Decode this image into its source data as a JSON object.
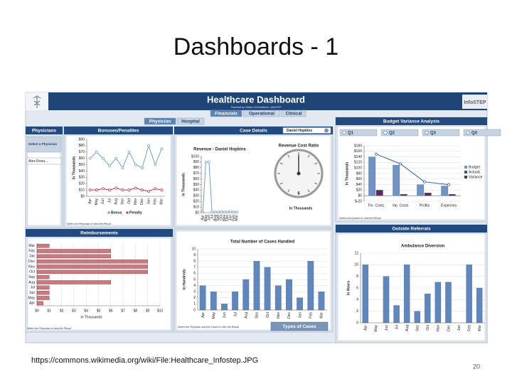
{
  "slide": {
    "title": "Dashboards - 1",
    "source": "https://commons.wikimedia.org/wiki/File:Healthcare_Infostep.JPG",
    "page": "20"
  },
  "dashboard": {
    "title": "Healthcare Dashboard",
    "subtitle": "Powered by Center of Excellence, InfoSTEP",
    "logo": "InfoSTEP",
    "tabs": [
      "Financials",
      "Operational",
      "Clinical"
    ],
    "subtabs": [
      "Physician",
      "Hospital"
    ]
  },
  "panels": {
    "physicians": {
      "header": "Physicians",
      "prompt": "Select a Physician",
      "dropdown": "Alex Rona..."
    },
    "bonuses": {
      "header": "Bonuses/Penalties",
      "footer": "Select the Physician to view the Result",
      "chart": {
        "type": "line",
        "ylabel": "In Thousands",
        "legend": "bottom",
        "grid": false,
        "categories": [
          "Apr",
          "May",
          "Jun",
          "Jul",
          "Aug",
          "Sep",
          "Oct",
          "Nov",
          "Dec",
          "Jan",
          "Feb",
          "Mar"
        ],
        "ylim": [
          0,
          90
        ],
        "yticks": [
          {
            "value": 0,
            "label": "$0"
          },
          {
            "value": 10,
            "label": "$10"
          },
          {
            "value": 20,
            "label": "$20"
          },
          {
            "value": 30,
            "label": "$30"
          },
          {
            "value": 40,
            "label": "$40"
          },
          {
            "value": 50,
            "label": "$50"
          },
          {
            "value": 60,
            "label": "$60"
          },
          {
            "value": 70,
            "label": "$70"
          },
          {
            "value": 80,
            "label": "$80"
          },
          {
            "value": 90,
            "label": "$90"
          }
        ],
        "series": [
          {
            "name": "Bonus",
            "color": "#6d9fd6",
            "values": [
              60,
              70,
              60,
              48,
              60,
              45,
              70,
              50,
              45,
              80,
              50,
              75
            ]
          },
          {
            "name": "Penalty",
            "color": "#c9323a",
            "values": [
              10,
              10,
              12,
              10,
              13,
              10,
              10,
              13,
              10,
              8,
              12,
              10
            ]
          }
        ]
      }
    },
    "case_details": {
      "header": "Case Details",
      "dropdown": "Daniel Hopkins",
      "chart": {
        "type": "line",
        "title": "Revenue - Daniel Hopkins",
        "ylabel": "In Thousands",
        "grid": false,
        "categories": [
          "Apr",
          "May",
          "Jun",
          "Jul",
          "Aug",
          "Sep",
          "Oct",
          "Nov",
          "Dec",
          "Jan",
          "Feb",
          "Mar"
        ],
        "ylim": [
          0,
          100
        ],
        "yticks": [
          {
            "value": 0,
            "label": "$0"
          },
          {
            "value": 10,
            "label": "$10"
          },
          {
            "value": 20,
            "label": "$20"
          },
          {
            "value": 30,
            "label": "$30"
          },
          {
            "value": 40,
            "label": "$40"
          },
          {
            "value": 50,
            "label": "$50"
          },
          {
            "value": 60,
            "label": "$60"
          },
          {
            "value": 70,
            "label": "$70"
          },
          {
            "value": 80,
            "label": "$80"
          },
          {
            "value": 90,
            "label": "$90"
          },
          {
            "value": 100,
            "label": "$100"
          }
        ],
        "series": [
          {
            "color": "#6d9fd6",
            "values": [
              1,
              90,
              90,
              1,
              1,
              1,
              2,
              1,
              1,
              2,
              1,
              1
            ]
          }
        ]
      },
      "gauge": {
        "title": "Revenue Cost Ratio",
        "value": 6,
        "unit": "In Thousands"
      }
    },
    "budget": {
      "header": "Budget Variance Analysis",
      "quarters": [
        "Q1",
        "Q2",
        "Q3",
        "Q4"
      ],
      "footer": "Select the Quarter to view the Result",
      "chart": {
        "type": "bar",
        "ylabel": "In Thousands",
        "legend": "right",
        "grid": true,
        "categories": [
          "Fix. Costs",
          "Var. Costs",
          "Profits",
          "Expenses"
        ],
        "ylim": [
          -20,
          180
        ],
        "yticks": [
          {
            "value": -20,
            "label": "$-20"
          },
          {
            "value": 0,
            "label": "$0"
          },
          {
            "value": 20,
            "label": "$20"
          },
          {
            "value": 40,
            "label": "$40"
          },
          {
            "value": 60,
            "label": "$60"
          },
          {
            "value": 80,
            "label": "$80"
          },
          {
            "value": 100,
            "label": "$100"
          },
          {
            "value": 120,
            "label": "$120"
          },
          {
            "value": 140,
            "label": "$140"
          },
          {
            "value": 160,
            "label": "$160"
          },
          {
            "value": 180,
            "label": "$180"
          }
        ],
        "series": [
          {
            "name": "Budget",
            "color": "#6f93c4",
            "values": [
              140,
              110,
              40,
              35
            ]
          },
          {
            "name": "Actuals",
            "color": "#2f5d9e",
            "style": "line",
            "values": [
              150,
              115,
              50,
              40
            ]
          },
          {
            "name": "Variance",
            "color": "#5b2a5e",
            "values": [
              20,
              5,
              10,
              5
            ]
          }
        ]
      }
    },
    "reimbursements": {
      "header": "Reimbursements",
      "footer": "Select the Physician to view the Result",
      "chart": {
        "type": "hbar",
        "xlabel": "In Thousands",
        "grid": true,
        "color": "#c97a7f",
        "categories": [
          "Mar",
          "Feb",
          "Jan",
          "Dec",
          "Nov",
          "Oct",
          "Sep",
          "Aug",
          "Jul",
          "Jun",
          "May",
          "Apr"
        ],
        "values": [
          1,
          6,
          6,
          9,
          9,
          9,
          1,
          6,
          1,
          1,
          1,
          0.5
        ],
        "xlim": [
          0,
          10
        ],
        "xticks": [
          {
            "value": 0,
            "label": "$0"
          },
          {
            "value": 1,
            "label": "$1"
          },
          {
            "value": 2,
            "label": "$2"
          },
          {
            "value": 3,
            "label": "$3"
          },
          {
            "value": 4,
            "label": "$4"
          },
          {
            "value": 5,
            "label": "$5"
          },
          {
            "value": 6,
            "label": "$6"
          },
          {
            "value": 7,
            "label": "$7"
          },
          {
            "value": 8,
            "label": "$8"
          },
          {
            "value": 9,
            "label": "$9"
          },
          {
            "value": 10,
            "label": "$10"
          }
        ]
      }
    },
    "cases": {
      "footer": "Select the Physician and the Cases to view the Result",
      "button": "Types of Cases",
      "chart": {
        "type": "bar",
        "title": "Total Number of Cases Handled",
        "ylabel": "In Hundreds",
        "grid": true,
        "categories": [
          "Apr",
          "May",
          "Jun",
          "Jul",
          "Aug",
          "Sep",
          "Oct",
          "Nov",
          "Dec",
          "Jan",
          "Feb",
          "Mar"
        ],
        "ylim": [
          0,
          10
        ],
        "yticks": [
          0,
          1,
          2,
          3,
          4,
          5,
          6,
          7,
          8,
          9,
          10
        ],
        "series": [
          {
            "color": "#5f86bd",
            "values": [
              4,
              3,
              1,
              3,
              5,
              8,
              7,
              4,
              5,
              2,
              8,
              3
            ]
          }
        ]
      }
    },
    "referrals": {
      "header": "Outside Referrals",
      "chart": {
        "type": "bar",
        "title": "Ambulance Diversion",
        "ylabel": "In Hours",
        "grid": true,
        "categories": [
          "Apr",
          "May",
          "Jun",
          "Jul",
          "Aug",
          "Sep",
          "Oct",
          "Nov",
          "Dec",
          "Jan",
          "Feb",
          "Mar"
        ],
        "ylim": [
          0,
          12
        ],
        "yticks": [
          0,
          2,
          4,
          6,
          8,
          10,
          12
        ],
        "series": [
          {
            "color": "#5f86bd",
            "values": [
              10,
              0,
              8,
              3,
              10,
              2,
              5,
              7,
              7,
              0,
              10,
              6
            ]
          }
        ]
      }
    }
  }
}
